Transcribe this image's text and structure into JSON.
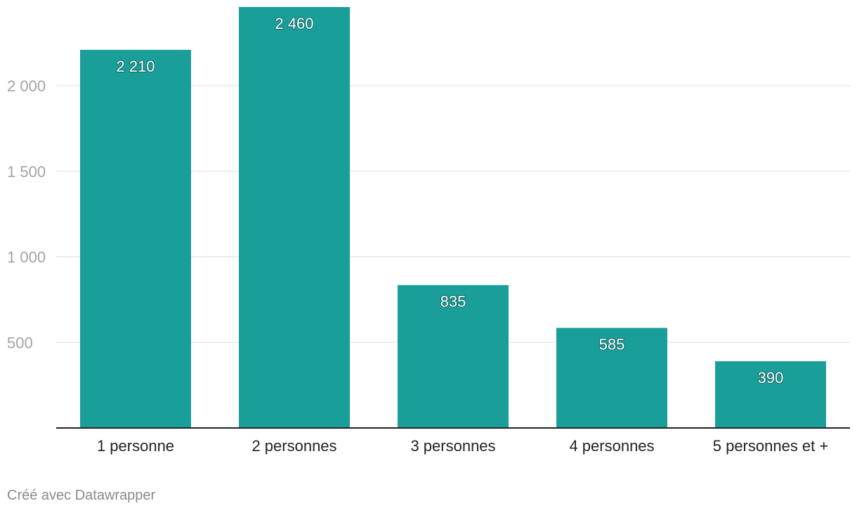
{
  "chart_data": {
    "type": "bar",
    "categories": [
      "1 personne",
      "2 personnes",
      "3 personnes",
      "4 personnes",
      "5 personnes et +"
    ],
    "values": [
      2210,
      2460,
      835,
      585,
      390
    ],
    "value_labels": [
      "2 210",
      "2 460",
      "835",
      "585",
      "390"
    ],
    "yticks": [
      500,
      1000,
      1500,
      2000
    ],
    "ytick_labels": [
      "500",
      "1 000",
      "1 500",
      "2 000"
    ],
    "ylim": [
      0,
      2460
    ],
    "grid": true,
    "bar_color": "#1a9e99",
    "title": "",
    "xlabel": "",
    "ylabel": ""
  },
  "footer": {
    "credit": "Créé avec Datawrapper"
  }
}
